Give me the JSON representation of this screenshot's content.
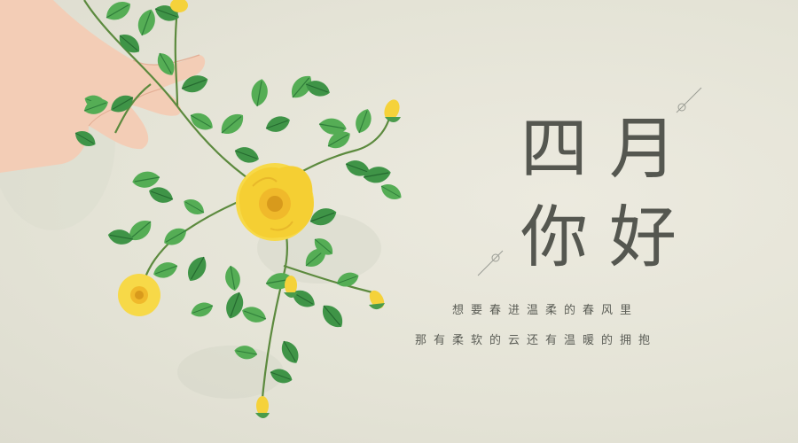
{
  "title": {
    "char1": "四",
    "char2": "月",
    "char3": "你",
    "char4": "好"
  },
  "subtitle": {
    "line1": "想要春进温柔的春风里",
    "line2": "那有柔软的云还有温暖的拥抱"
  },
  "colors": {
    "background": "#e7e6da",
    "text": "#555750",
    "leaf": "#4ea650",
    "leaf_dark": "#2f7d3a",
    "flower": "#f5d23a",
    "flower_center": "#e0a81a",
    "skin": "#f3cdb6"
  },
  "icons": {
    "flower": "yellow-rose-icon",
    "leaves": "leaf-icon",
    "hand": "hand-illustration",
    "ornament": "line-circle-ornament-icon"
  }
}
